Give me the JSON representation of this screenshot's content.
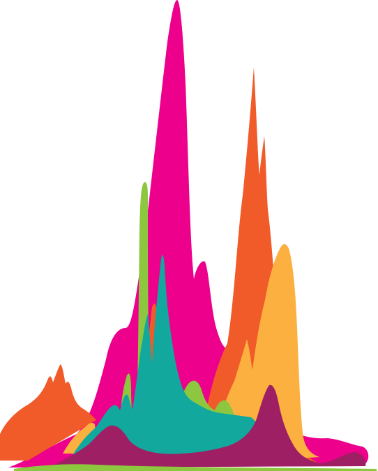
{
  "artwork": {
    "background": "#ffffff",
    "colors": {
      "magenta": "#EC008C",
      "orange": "#F15A29",
      "amber": "#FBB040",
      "lime": "#8DC63F",
      "teal": "#12A89D",
      "plum": "#9E1F63"
    }
  }
}
